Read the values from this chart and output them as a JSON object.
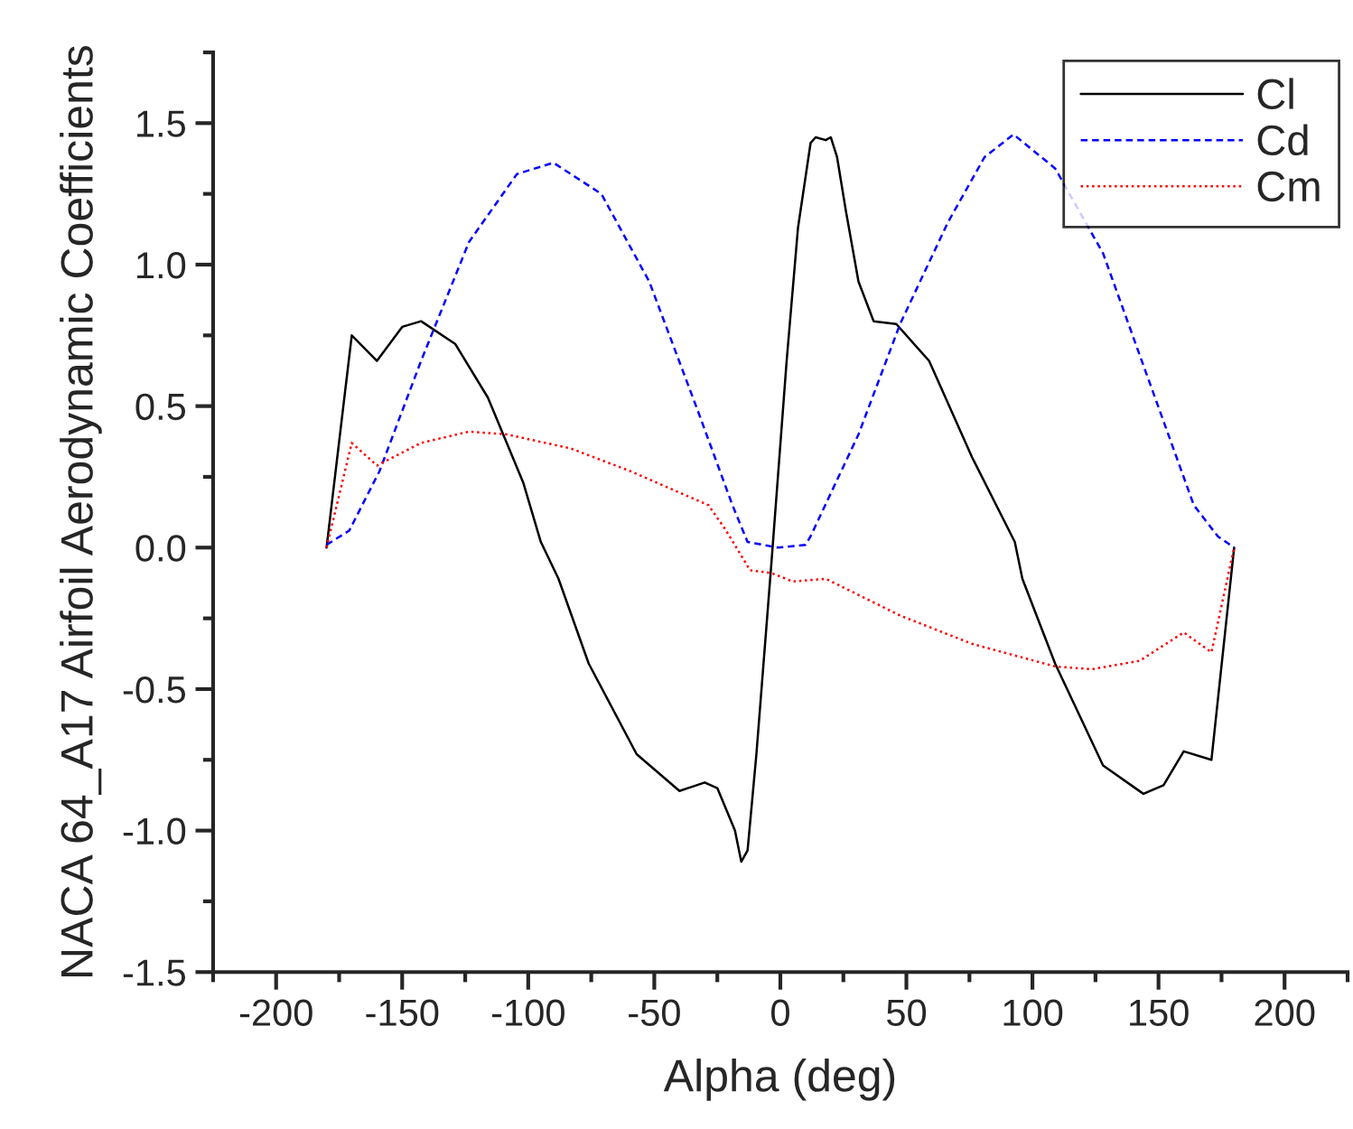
{
  "chart_data": {
    "type": "line",
    "xlabel": "Alpha (deg)",
    "ylabel": "NACA 64_A17 Airfoil Aerodynamic Coefficients",
    "xlim": [
      -225,
      225
    ],
    "xticks": [
      -200,
      -150,
      -100,
      -50,
      0,
      50,
      100,
      150,
      200
    ],
    "ylim": [
      -1.5,
      1.75
    ],
    "yticks": [
      {
        "value": -1.5,
        "label": "-1.5"
      },
      {
        "value": -1.0,
        "label": "-1.0"
      },
      {
        "value": -0.5,
        "label": "-0.5"
      },
      {
        "value": 0.0,
        "label": "0.0"
      },
      {
        "value": 0.5,
        "label": "0.5"
      },
      {
        "value": 1.0,
        "label": "1.0"
      },
      {
        "value": 1.5,
        "label": "1.5"
      }
    ],
    "legend": "top right",
    "grid": false,
    "marker": "none",
    "series": [
      {
        "name": "Cl",
        "color": "#000000",
        "line_style": "solid",
        "x": [
          -180,
          -170,
          -160,
          -150,
          -142.5,
          -129,
          -116,
          -102,
          -95,
          -88,
          -76,
          -57,
          -40,
          -30,
          -25,
          -18,
          -15.5,
          -13,
          -9.5,
          -3.5,
          2.5,
          7,
          12,
          14,
          18,
          20,
          22.5,
          26,
          31,
          37,
          46,
          59,
          76,
          93,
          96,
          109,
          128,
          144,
          152,
          160,
          171,
          180
        ],
        "values": [
          0,
          0.75,
          0.66,
          0.78,
          0.8,
          0.72,
          0.53,
          0.23,
          0.02,
          -0.11,
          -0.41,
          -0.73,
          -0.86,
          -0.83,
          -0.85,
          -1.0,
          -1.11,
          -1.07,
          -0.73,
          -0.05,
          0.66,
          1.13,
          1.43,
          1.45,
          1.44,
          1.45,
          1.38,
          1.19,
          0.94,
          0.8,
          0.79,
          0.66,
          0.32,
          0.02,
          -0.11,
          -0.41,
          -0.77,
          -0.87,
          -0.84,
          -0.72,
          -0.75,
          0
        ]
      },
      {
        "name": "Cd",
        "color": "#0000ff",
        "line_style": "dashed",
        "x": [
          -180,
          -171,
          -159,
          -142.5,
          -123.5,
          -104.5,
          -90,
          -71,
          -52,
          -33,
          -19,
          -13,
          -1,
          10,
          12,
          31,
          47.5,
          66.5,
          81,
          92.5,
          109,
          128,
          147,
          164,
          173.5,
          180
        ],
        "values": [
          0.01,
          0.06,
          0.27,
          0.66,
          1.08,
          1.32,
          1.36,
          1.25,
          0.94,
          0.49,
          0.15,
          0.02,
          0.0,
          0.01,
          0.04,
          0.4,
          0.79,
          1.15,
          1.38,
          1.46,
          1.34,
          1.04,
          0.57,
          0.15,
          0.04,
          0.0
        ]
      },
      {
        "name": "Cm",
        "color": "#ff0000",
        "line_style": "dotted",
        "x": [
          -180,
          -170,
          -160,
          -142.5,
          -123.5,
          -108.5,
          -83,
          -59.5,
          -28.5,
          -21.5,
          -12,
          -3.5,
          5,
          18,
          47.5,
          76,
          109,
          123.5,
          142.5,
          160,
          171,
          180
        ],
        "values": [
          0,
          0.37,
          0.29,
          0.37,
          0.41,
          0.4,
          0.35,
          0.27,
          0.15,
          0.06,
          -0.08,
          -0.09,
          -0.12,
          -0.11,
          -0.24,
          -0.34,
          -0.42,
          -0.43,
          -0.4,
          -0.3,
          -0.37,
          0
        ]
      }
    ]
  }
}
